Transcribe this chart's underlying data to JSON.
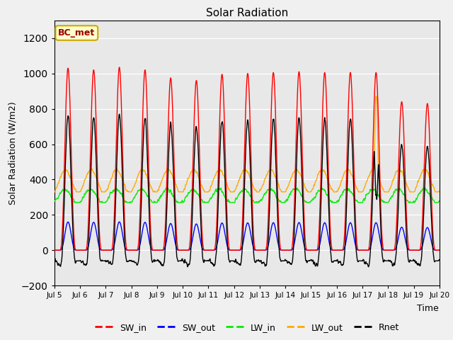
{
  "title": "Solar Radiation",
  "xlabel": "Time",
  "ylabel": "Solar Radiation (W/m2)",
  "ylim": [
    -200,
    1300
  ],
  "yticks": [
    -200,
    0,
    200,
    400,
    600,
    800,
    1000,
    1200
  ],
  "n_days": 16,
  "dt_hours": 0.25,
  "colors": {
    "SW_in": "#ff0000",
    "SW_out": "#0000ff",
    "LW_in": "#00ee00",
    "LW_out": "#ffaa00",
    "Rnet": "#000000"
  },
  "label_box": "BC_met",
  "label_box_facecolor": "#ffffcc",
  "label_box_edgecolor": "#ccaa00",
  "ax_facecolor": "#e8e8e8",
  "fig_facecolor": "#f0f0f0",
  "xtick_labels": [
    "Jul 5",
    "Jul 6",
    "Jul 7",
    "Jul 8",
    "Jul 9",
    "Jul 10",
    "Jul 11",
    "Jul 12",
    "Jul 13",
    "Jul 14",
    "Jul 15",
    "Jul 16",
    "Jul 17",
    "Jul 18",
    "Jul 19",
    "Jul 20"
  ]
}
